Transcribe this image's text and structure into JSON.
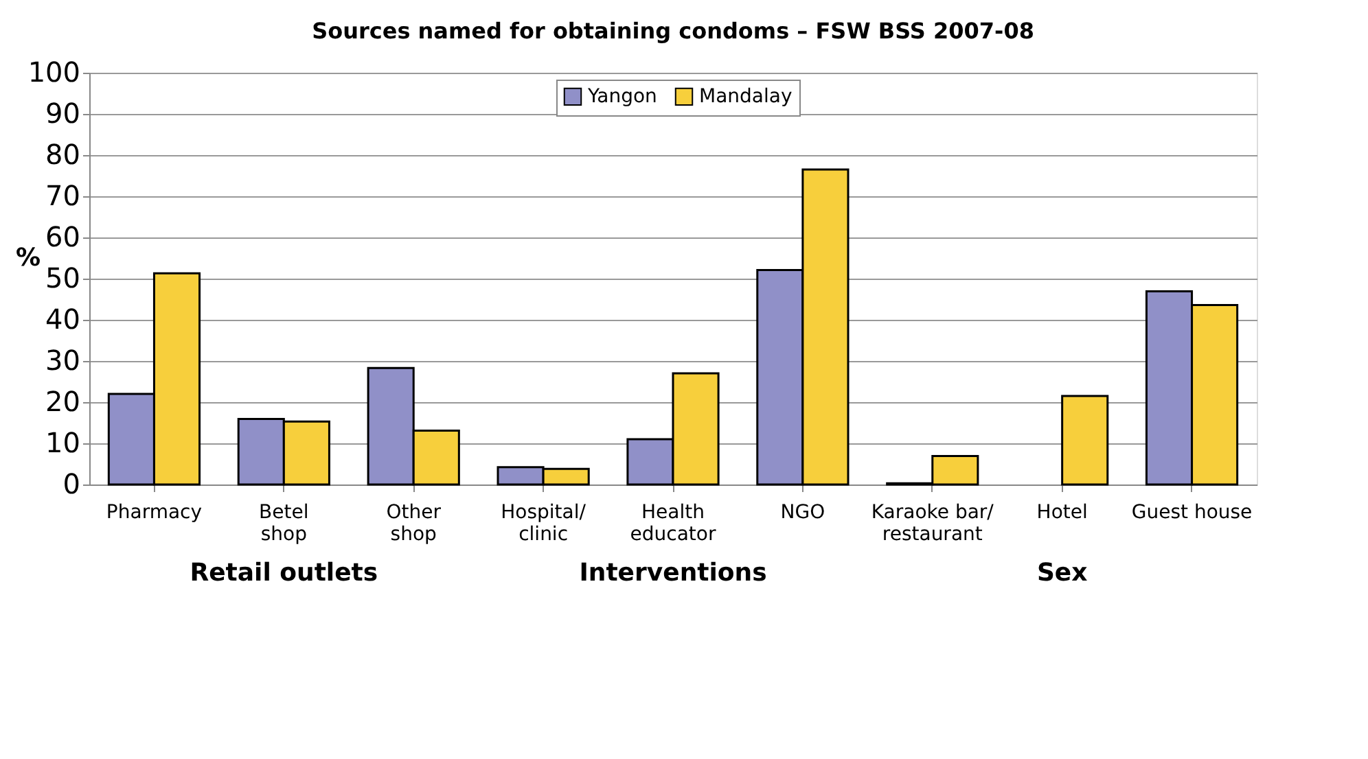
{
  "chart_data": {
    "type": "bar",
    "title": "Sources named for obtaining condoms – FSW BSS 2007-08",
    "ylabel": "%",
    "categories": [
      "Pharmacy",
      "Betel\nshop",
      "Other\nshop",
      "Hospital/\nclinic",
      "Health\neducator",
      "NGO",
      "Karaoke bar/\nrestaurant",
      "Hotel",
      "Guest house"
    ],
    "series": [
      {
        "name": "Yangon",
        "color": "#9090c8",
        "values": [
          22,
          15.9,
          28.3,
          4.2,
          11,
          52.1,
          0.3,
          null,
          46.9
        ]
      },
      {
        "name": "Mandalay",
        "color": "#f7cf3c",
        "values": [
          51.3,
          15.3,
          13.1,
          3.8,
          27,
          76.5,
          6.9,
          21.5,
          43.6
        ]
      }
    ],
    "ylim": [
      0,
      100
    ],
    "yticks": [
      0,
      10,
      20,
      30,
      40,
      50,
      60,
      70,
      80,
      90,
      100
    ],
    "grid": "y",
    "legend": "top",
    "annotations": [
      "Retail outlets",
      "Interventions",
      "Sex"
    ]
  }
}
